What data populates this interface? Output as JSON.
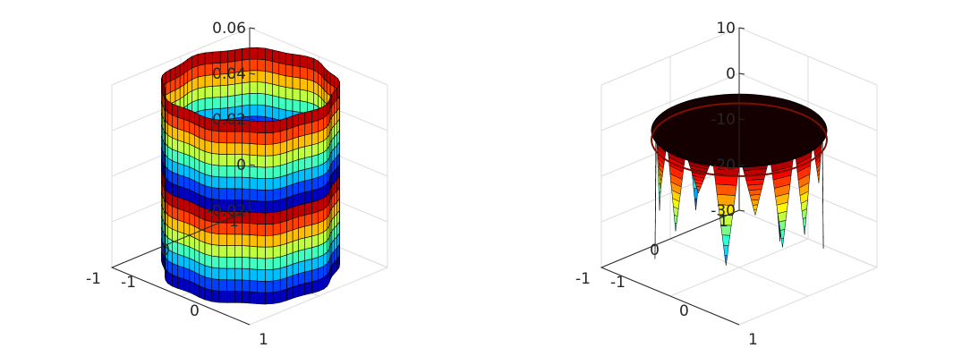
{
  "chart_data": [
    {
      "type": "surface",
      "title": "",
      "xlabel": "",
      "ylabel": "",
      "zlabel": "",
      "xlim": [
        -1,
        1
      ],
      "ylim": [
        -1,
        1
      ],
      "zlim": [
        -0.02,
        0.06
      ],
      "x_ticks": [
        "-1",
        "0",
        "1"
      ],
      "y_ticks": [
        "-1",
        "0",
        "1"
      ],
      "z_ticks": [
        "-0.02",
        "0",
        "0.02",
        "0.04",
        "0.06"
      ],
      "surface": {
        "shape": "cylindrical wall",
        "radius": 0.9,
        "z_min": -0.02,
        "z_max": 0.06,
        "colormap": "jet"
      },
      "grid": true,
      "legend": "none"
    },
    {
      "type": "surface",
      "title": "",
      "xlabel": "",
      "ylabel": "",
      "zlabel": "",
      "xlim": [
        -1,
        1
      ],
      "ylim": [
        -1,
        1
      ],
      "zlim": [
        -30,
        10
      ],
      "x_ticks": [
        "-1",
        "0",
        "1"
      ],
      "y_ticks": [
        "-1",
        "0",
        "1"
      ],
      "z_ticks": [
        "-30",
        "-20",
        "-10",
        "0",
        "10"
      ],
      "surface": {
        "shape": "flat disc with downward spikes at rim",
        "radius": 0.9,
        "plateau_z": 0,
        "spike_depths": [
          -18,
          -9,
          -26,
          -12,
          -21,
          -31,
          -15,
          -8,
          -24,
          -13,
          -20,
          -28,
          -10,
          -17,
          -7,
          -22,
          -11,
          -19
        ],
        "colormap": "jet"
      },
      "grid": true,
      "legend": "none"
    }
  ]
}
